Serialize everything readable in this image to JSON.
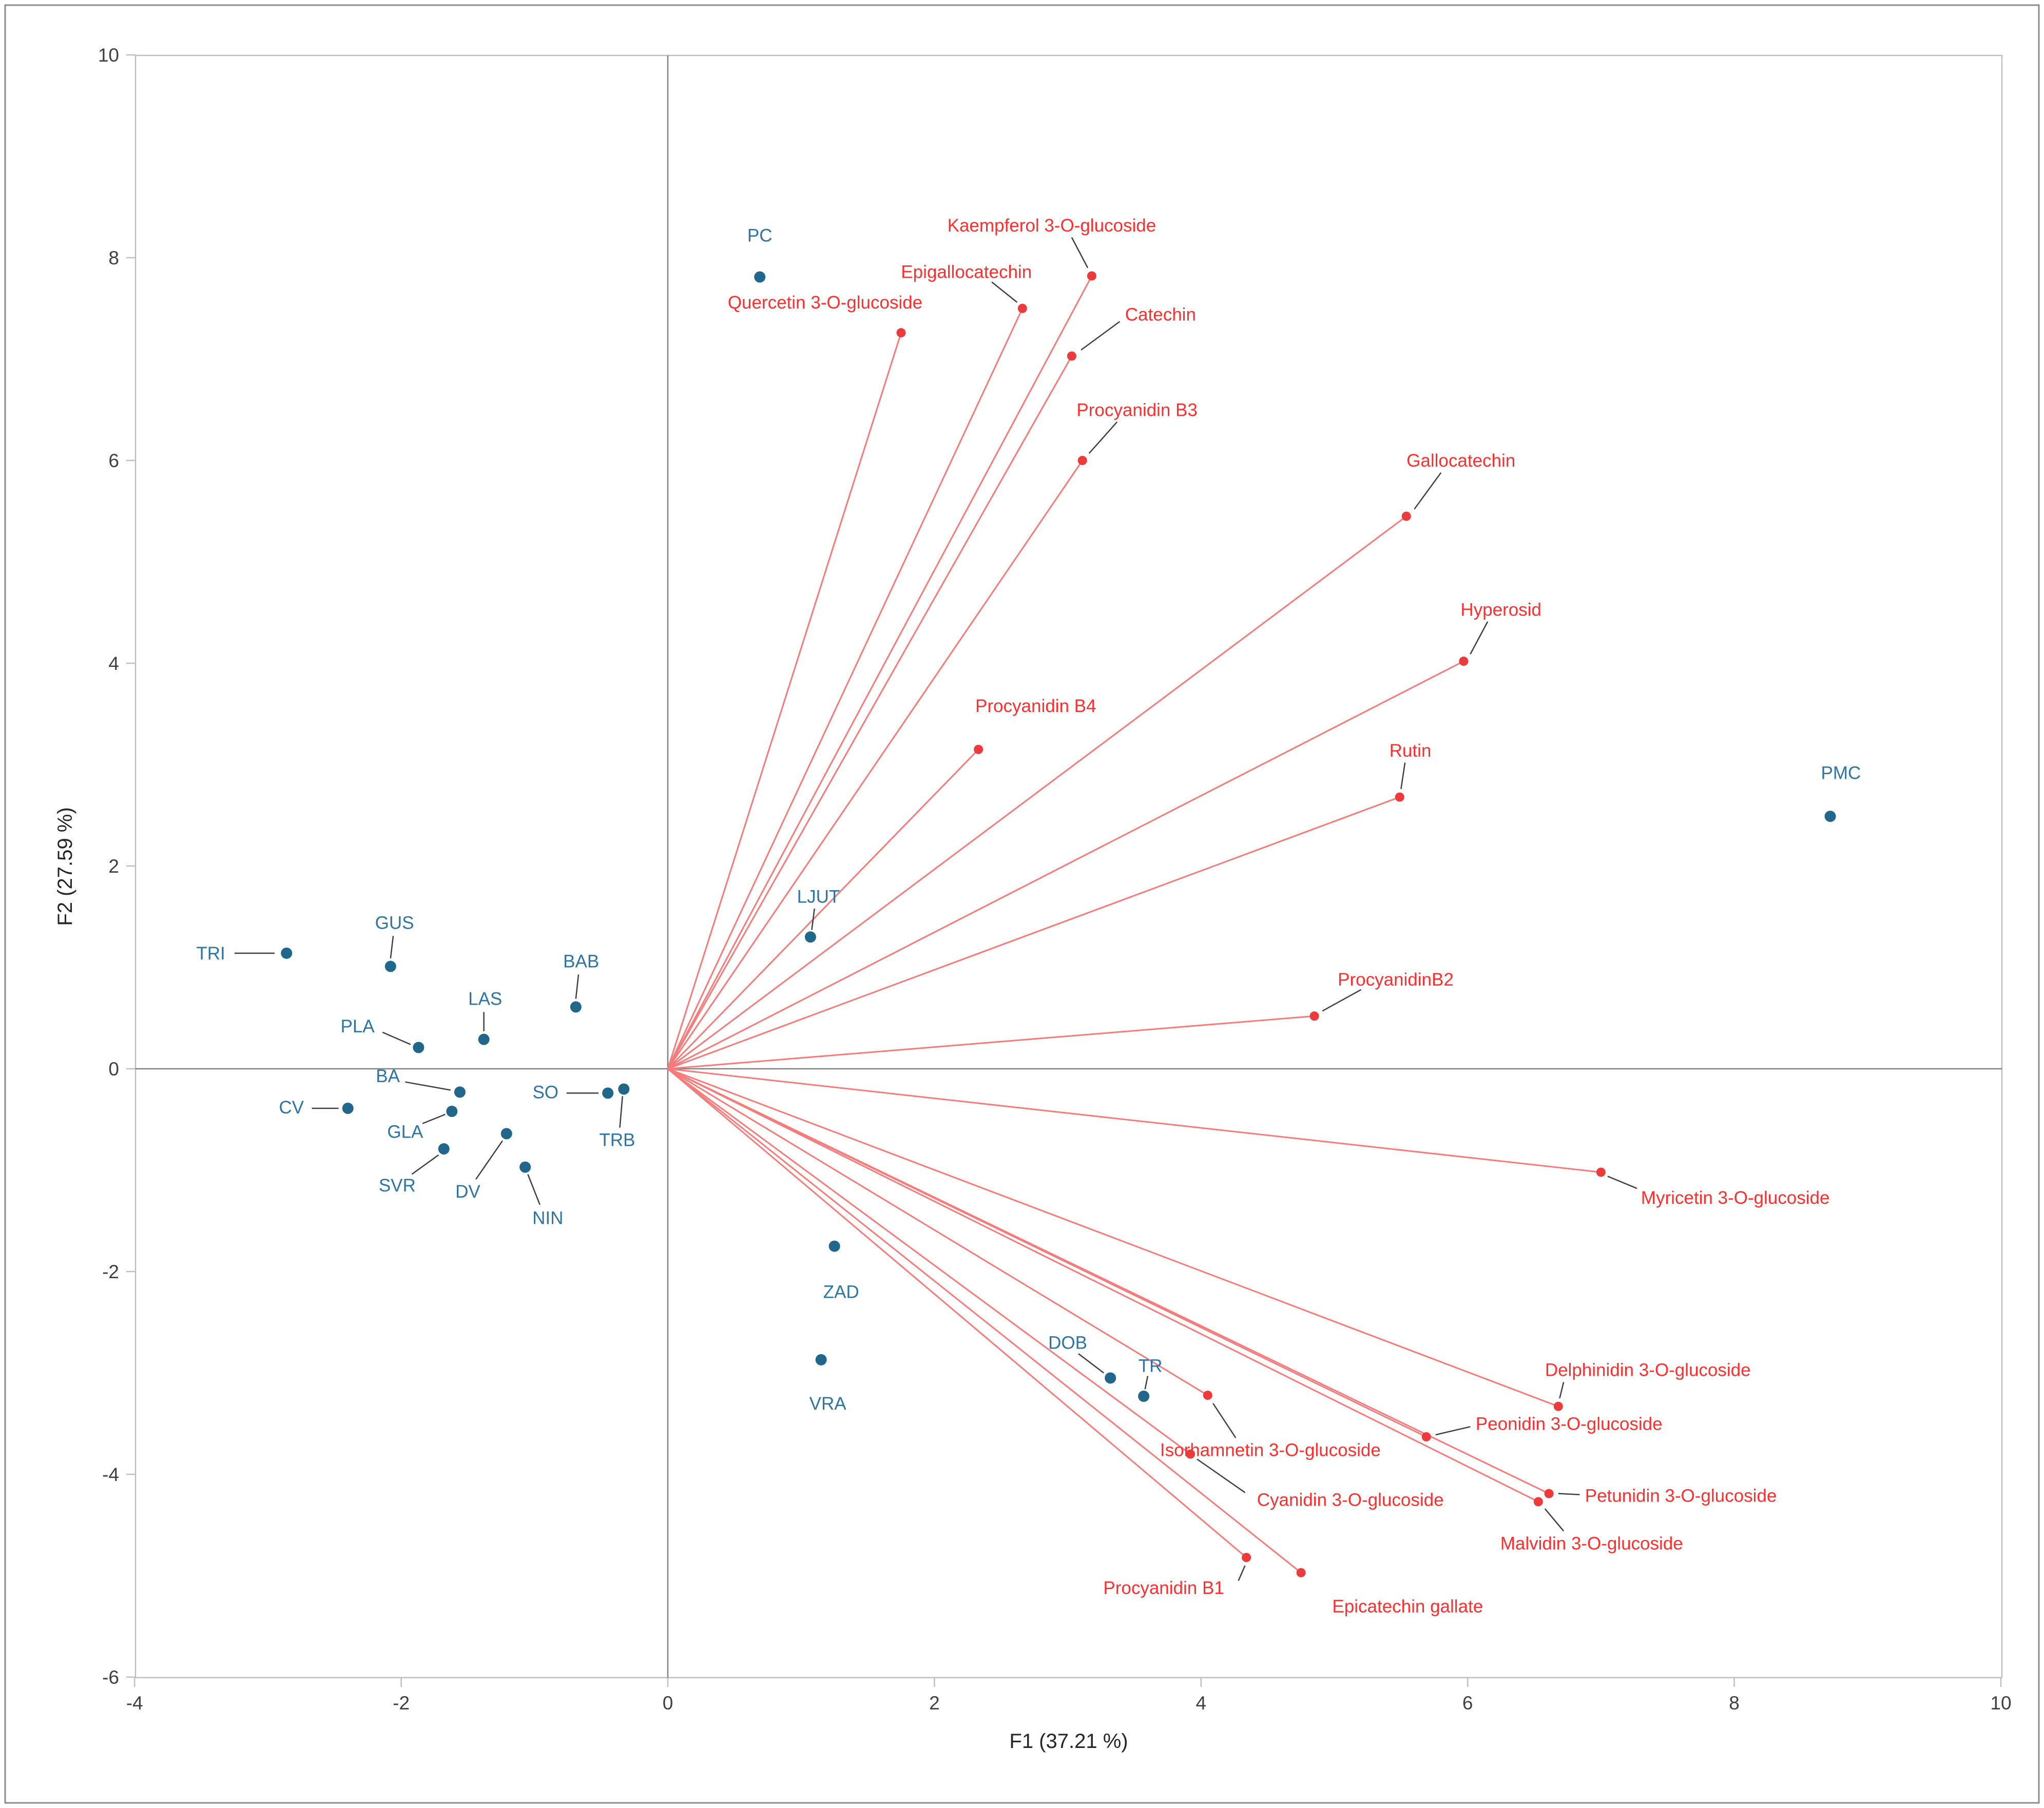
{
  "figure": {
    "background": "#ffffff",
    "border_color": "#8c8c8c"
  },
  "chart_data": {
    "type": "scatter",
    "subtype": "pca-biplot",
    "title": "",
    "xlabel": "F1 (37.21 %)",
    "ylabel": "F2 (27.59 %)",
    "xlim": [
      -4,
      10
    ],
    "ylim": [
      -6,
      10
    ],
    "x_ticks": [
      -4,
      -2,
      0,
      2,
      4,
      6,
      8,
      10
    ],
    "y_ticks": [
      10,
      8,
      6,
      4,
      2,
      0,
      -2,
      -4,
      -6
    ],
    "grid": false,
    "legend": "none",
    "colors": {
      "sample_point": "#21678b",
      "sample_label": "#2e74a4",
      "variable_point": "#ee3a3a",
      "variable_label": "#ff2f2f",
      "vector_line": "#f87b7b",
      "leader_line": "#3f3f3f",
      "axis_line": "#808080",
      "frame": "#bfbfbf",
      "tick_text": "#404040",
      "axis_title_text": "#262626"
    },
    "samples": [
      {
        "label": "PC",
        "x": 0.69,
        "y": 7.81,
        "lx": 0.69,
        "ly": 8.22,
        "anchor": "middle",
        "leader": null
      },
      {
        "label": "PMC",
        "x": 8.72,
        "y": 2.49,
        "lx": 8.8,
        "ly": 2.92,
        "anchor": "middle",
        "leader": null
      },
      {
        "label": "TRI",
        "x": -2.86,
        "y": 1.14,
        "lx": -3.32,
        "ly": 1.14,
        "anchor": "end",
        "leader": [
          [
            -3.25,
            1.14
          ],
          [
            -2.95,
            1.14
          ]
        ]
      },
      {
        "label": "GUS",
        "x": -2.08,
        "y": 1.01,
        "lx": -2.05,
        "ly": 1.44,
        "anchor": "middle",
        "leader": [
          [
            -2.06,
            1.31
          ],
          [
            -2.08,
            1.09
          ]
        ]
      },
      {
        "label": "BAB",
        "x": -0.69,
        "y": 0.61,
        "lx": -0.65,
        "ly": 1.06,
        "anchor": "middle",
        "leader": [
          [
            -0.67,
            0.93
          ],
          [
            -0.69,
            0.69
          ]
        ]
      },
      {
        "label": "LAS",
        "x": -1.38,
        "y": 0.29,
        "lx": -1.37,
        "ly": 0.69,
        "anchor": "middle",
        "leader": [
          [
            -1.38,
            0.56
          ],
          [
            -1.38,
            0.37
          ]
        ]
      },
      {
        "label": "PLA",
        "x": -1.87,
        "y": 0.21,
        "lx": -2.2,
        "ly": 0.42,
        "anchor": "end",
        "leader": [
          [
            -2.14,
            0.36
          ],
          [
            -1.93,
            0.24
          ]
        ]
      },
      {
        "label": "BA",
        "x": -1.56,
        "y": -0.23,
        "lx": -2.1,
        "ly": -0.07,
        "anchor": "middle",
        "leader": [
          [
            -1.97,
            -0.13
          ],
          [
            -1.63,
            -0.21
          ]
        ]
      },
      {
        "label": "CV",
        "x": -2.4,
        "y": -0.39,
        "lx": -2.73,
        "ly": -0.38,
        "anchor": "end",
        "leader": [
          [
            -2.67,
            -0.39
          ],
          [
            -2.47,
            -0.39
          ]
        ]
      },
      {
        "label": "GLA",
        "x": -1.62,
        "y": -0.42,
        "lx": -1.97,
        "ly": -0.62,
        "anchor": "middle",
        "leader": [
          [
            -1.84,
            -0.54
          ],
          [
            -1.67,
            -0.45
          ]
        ]
      },
      {
        "label": "SVR",
        "x": -1.68,
        "y": -0.79,
        "lx": -2.03,
        "ly": -1.15,
        "anchor": "middle",
        "leader": [
          [
            -1.92,
            -1.04
          ],
          [
            -1.72,
            -0.85
          ]
        ]
      },
      {
        "label": "DV",
        "x": -1.21,
        "y": -0.64,
        "lx": -1.5,
        "ly": -1.21,
        "anchor": "middle",
        "leader": [
          [
            -1.44,
            -1.09
          ],
          [
            -1.24,
            -0.71
          ]
        ]
      },
      {
        "label": "NIN",
        "x": -1.07,
        "y": -0.97,
        "lx": -0.9,
        "ly": -1.47,
        "anchor": "middle",
        "leader": [
          [
            -0.96,
            -1.34
          ],
          [
            -1.05,
            -1.04
          ]
        ]
      },
      {
        "label": "SO",
        "x": -0.45,
        "y": -0.24,
        "lx": -0.82,
        "ly": -0.23,
        "anchor": "end",
        "leader": [
          [
            -0.76,
            -0.24
          ],
          [
            -0.52,
            -0.24
          ]
        ]
      },
      {
        "label": "TRB",
        "x": -0.33,
        "y": -0.2,
        "lx": -0.38,
        "ly": -0.7,
        "anchor": "middle",
        "leader": [
          [
            -0.36,
            -0.58
          ],
          [
            -0.34,
            -0.27
          ]
        ]
      },
      {
        "label": "LJUT",
        "x": 1.07,
        "y": 1.3,
        "lx": 1.13,
        "ly": 1.7,
        "anchor": "middle",
        "leader": [
          [
            1.1,
            1.58
          ],
          [
            1.08,
            1.37
          ]
        ]
      },
      {
        "label": "ZAD",
        "x": 1.25,
        "y": -1.75,
        "lx": 1.3,
        "ly": -2.2,
        "anchor": "middle",
        "leader": null
      },
      {
        "label": "VRA",
        "x": 1.15,
        "y": -2.87,
        "lx": 1.2,
        "ly": -3.3,
        "anchor": "middle",
        "leader": null
      },
      {
        "label": "DOB",
        "x": 3.32,
        "y": -3.05,
        "lx": 3.0,
        "ly": -2.7,
        "anchor": "middle",
        "leader": [
          [
            3.08,
            -2.81
          ],
          [
            3.27,
            -3.0
          ]
        ]
      },
      {
        "label": "TR",
        "x": 3.57,
        "y": -3.23,
        "lx": 3.62,
        "ly": -2.93,
        "anchor": "middle",
        "leader": [
          [
            3.6,
            -3.03
          ],
          [
            3.58,
            -3.16
          ]
        ]
      }
    ],
    "variables": [
      {
        "label": "Quercetin 3-O-glucoside",
        "x": 1.75,
        "y": 7.26,
        "lx": 1.18,
        "ly": 7.56,
        "anchor": "middle",
        "leader": null
      },
      {
        "label": "Epigallocatechin",
        "x": 2.66,
        "y": 7.5,
        "lx": 2.24,
        "ly": 7.86,
        "anchor": "middle",
        "leader": [
          [
            2.43,
            7.76
          ],
          [
            2.62,
            7.56
          ]
        ]
      },
      {
        "label": "Kaempferol 3-O-glucoside",
        "x": 3.18,
        "y": 7.82,
        "lx": 2.88,
        "ly": 8.32,
        "anchor": "middle",
        "leader": [
          [
            3.03,
            8.2
          ],
          [
            3.15,
            7.9
          ]
        ]
      },
      {
        "label": "Catechin",
        "x": 3.03,
        "y": 7.03,
        "lx": 3.43,
        "ly": 7.44,
        "anchor": "start",
        "leader": [
          [
            3.39,
            7.37
          ],
          [
            3.1,
            7.09
          ]
        ]
      },
      {
        "label": "Procyanidin B3",
        "x": 3.11,
        "y": 6.0,
        "lx": 3.52,
        "ly": 6.5,
        "anchor": "middle",
        "leader": [
          [
            3.37,
            6.38
          ],
          [
            3.16,
            6.07
          ]
        ]
      },
      {
        "label": "Gallocatechin",
        "x": 5.54,
        "y": 5.45,
        "lx": 5.95,
        "ly": 6.0,
        "anchor": "middle",
        "leader": [
          [
            5.8,
            5.88
          ],
          [
            5.6,
            5.52
          ]
        ]
      },
      {
        "label": "Hyperosid",
        "x": 5.97,
        "y": 4.02,
        "lx": 6.25,
        "ly": 4.53,
        "anchor": "middle",
        "leader": [
          [
            6.15,
            4.41
          ],
          [
            6.02,
            4.09
          ]
        ]
      },
      {
        "label": "Procyanidin B4",
        "x": 2.33,
        "y": 3.15,
        "lx": 2.76,
        "ly": 3.58,
        "anchor": "middle",
        "leader": null
      },
      {
        "label": "Rutin",
        "x": 5.49,
        "y": 2.68,
        "lx": 5.57,
        "ly": 3.14,
        "anchor": "middle",
        "leader": [
          [
            5.53,
            3.02
          ],
          [
            5.5,
            2.76
          ]
        ]
      },
      {
        "label": "ProcyanidinB2",
        "x": 4.85,
        "y": 0.52,
        "lx": 5.46,
        "ly": 0.88,
        "anchor": "middle",
        "leader": [
          [
            5.2,
            0.78
          ],
          [
            4.91,
            0.57
          ]
        ]
      },
      {
        "label": "Myricetin 3-O-glucoside",
        "x": 7.0,
        "y": -1.02,
        "lx": 7.3,
        "ly": -1.27,
        "anchor": "start",
        "leader": [
          [
            7.27,
            -1.18
          ],
          [
            7.05,
            -1.06
          ]
        ]
      },
      {
        "label": "Delphinidin 3-O-glucoside",
        "x": 6.68,
        "y": -3.33,
        "lx": 6.58,
        "ly": -2.97,
        "anchor": "start",
        "leader": [
          [
            6.72,
            -3.09
          ],
          [
            6.69,
            -3.25
          ]
        ]
      },
      {
        "label": "Peonidin 3-O-glucoside",
        "x": 5.69,
        "y": -3.63,
        "lx": 6.06,
        "ly": -3.5,
        "anchor": "start",
        "leader": [
          [
            6.02,
            -3.53
          ],
          [
            5.76,
            -3.61
          ]
        ]
      },
      {
        "label": "Isorhamnetin 3-O-glucoside",
        "x": 4.05,
        "y": -3.22,
        "lx": 4.52,
        "ly": -3.76,
        "anchor": "middle",
        "leader": [
          [
            4.26,
            -3.64
          ],
          [
            4.09,
            -3.3
          ]
        ]
      },
      {
        "label": "Petunidin 3-O-glucoside",
        "x": 6.61,
        "y": -4.19,
        "lx": 6.88,
        "ly": -4.21,
        "anchor": "start",
        "leader": [
          [
            6.84,
            -4.2
          ],
          [
            6.68,
            -4.19
          ]
        ]
      },
      {
        "label": "Malvidin 3-O-glucoside",
        "x": 6.53,
        "y": -4.27,
        "lx": 6.93,
        "ly": -4.68,
        "anchor": "middle",
        "leader": [
          [
            6.72,
            -4.56
          ],
          [
            6.58,
            -4.34
          ]
        ]
      },
      {
        "label": "Cyanidin 3-O-glucoside",
        "x": 3.92,
        "y": -3.8,
        "lx": 5.12,
        "ly": -4.25,
        "anchor": "middle",
        "leader": [
          [
            4.33,
            -4.18
          ],
          [
            3.97,
            -3.85
          ]
        ]
      },
      {
        "label": "Procyanidin B1",
        "x": 4.34,
        "y": -4.82,
        "lx": 3.72,
        "ly": -5.12,
        "anchor": "middle",
        "leader": [
          [
            4.28,
            -5.05
          ],
          [
            4.33,
            -4.9
          ]
        ]
      },
      {
        "label": "Epicatechin gallate",
        "x": 4.75,
        "y": -4.97,
        "lx": 5.55,
        "ly": -5.3,
        "anchor": "middle",
        "leader": null
      }
    ]
  }
}
